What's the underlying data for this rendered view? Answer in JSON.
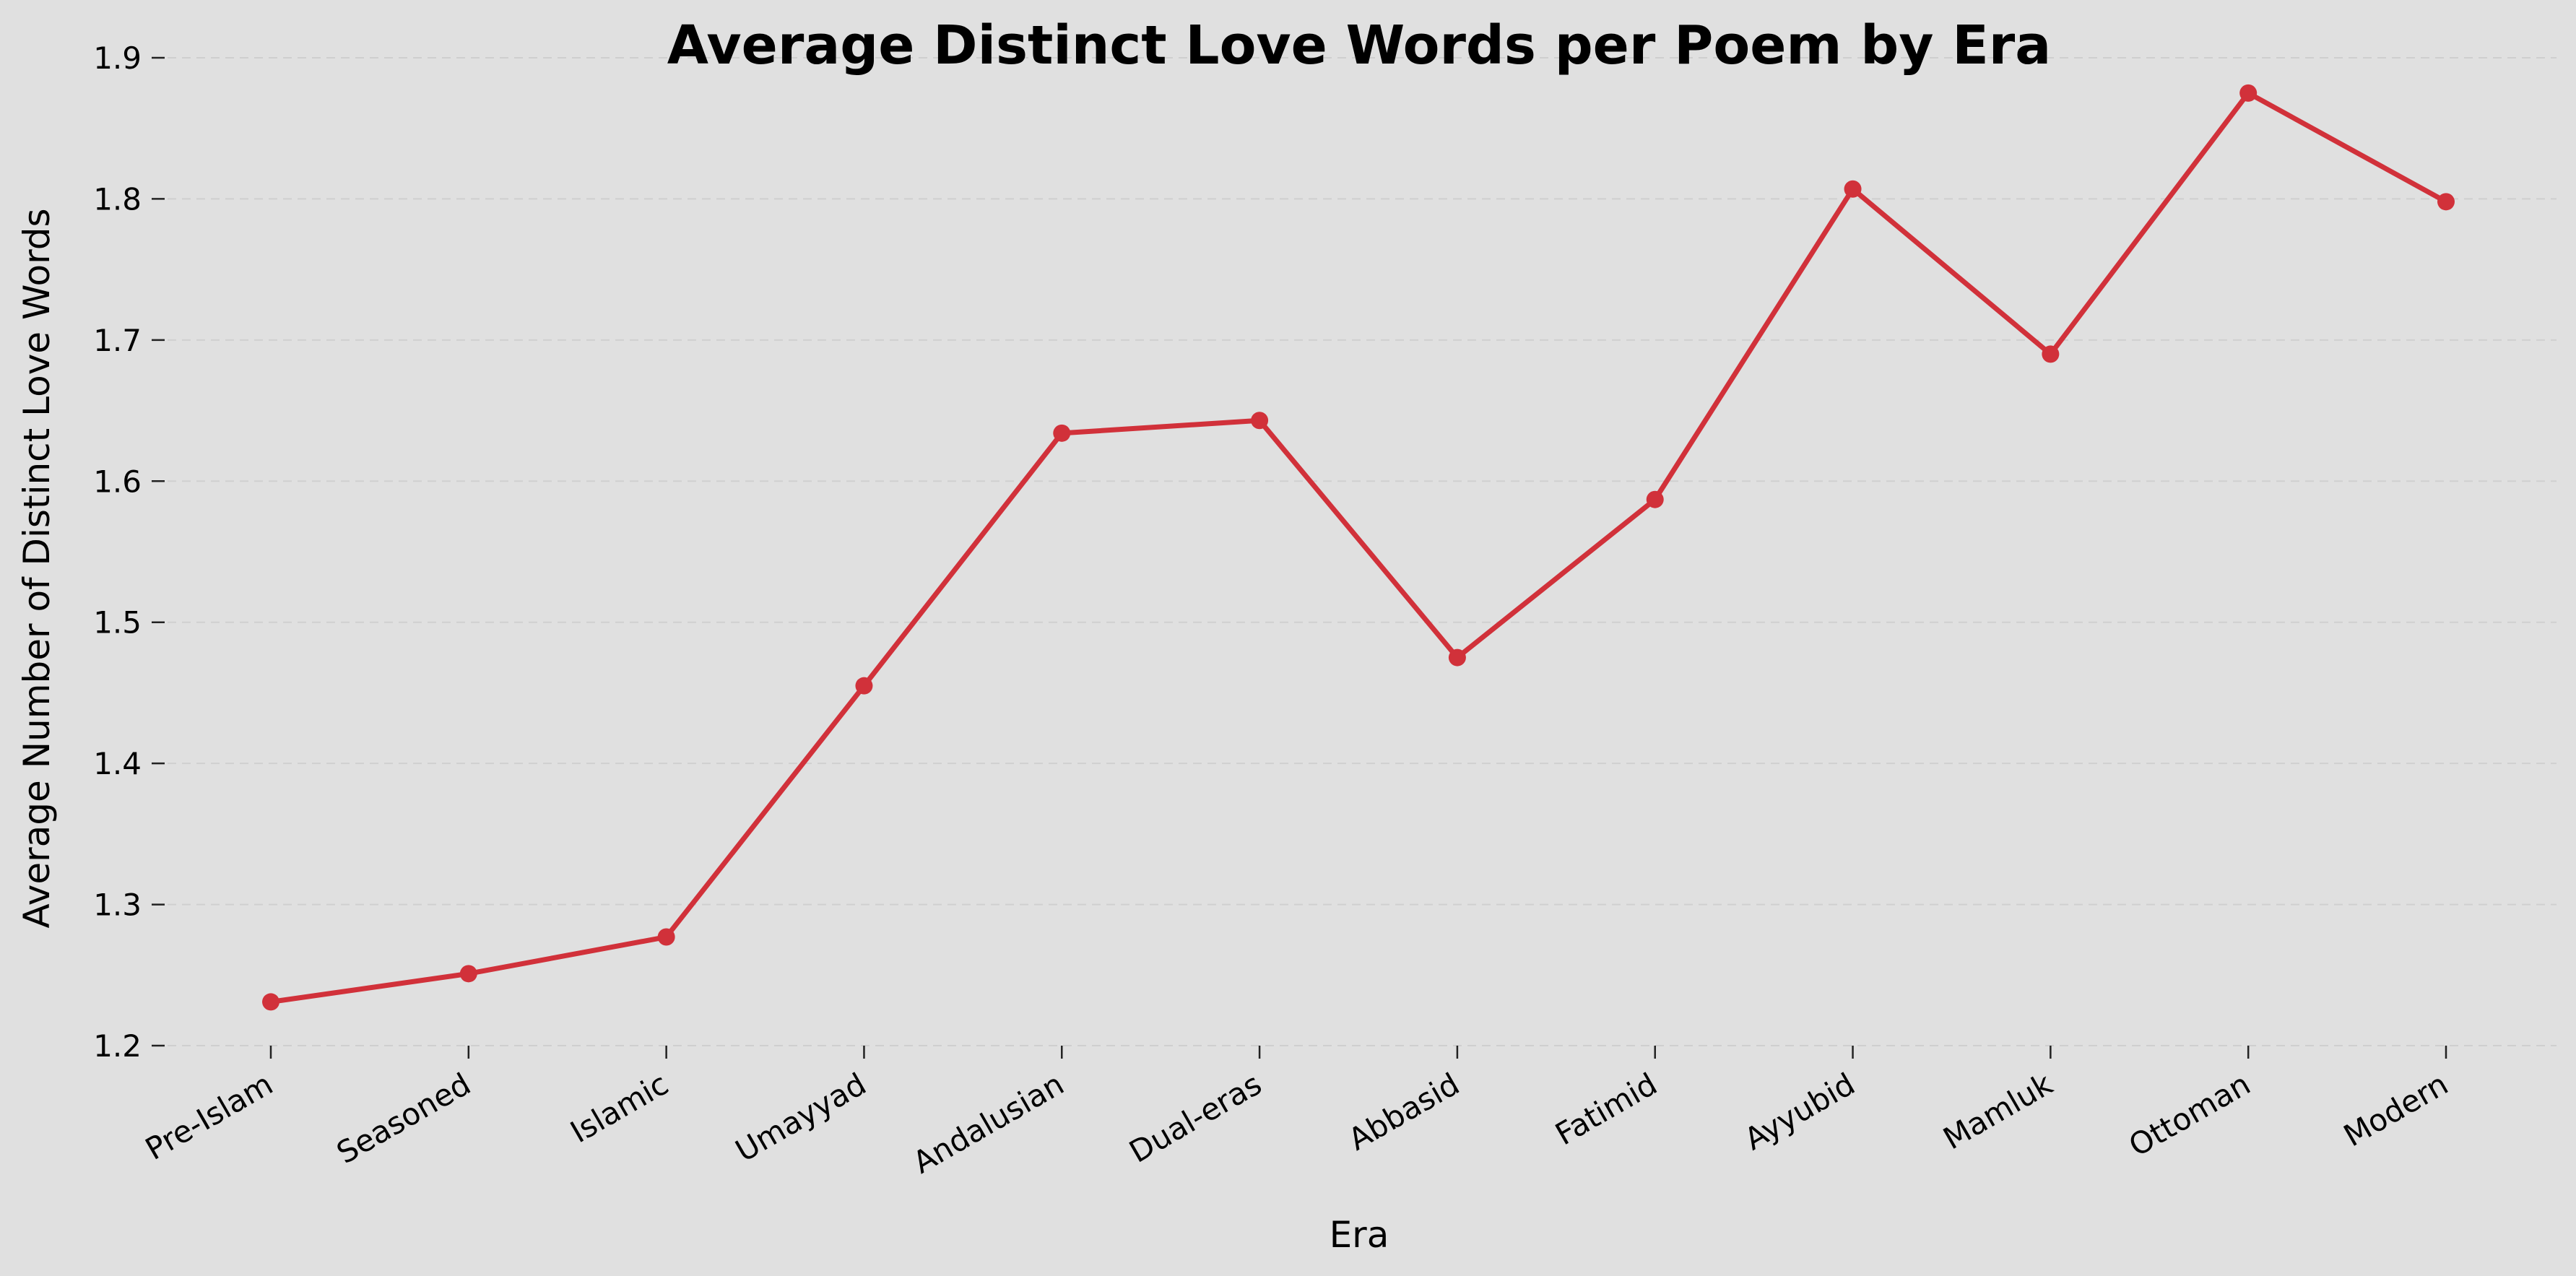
{
  "chart_data": {
    "type": "line",
    "title": "Average Distinct Love Words per Poem by Era",
    "xlabel": "Era",
    "ylabel": "Average Number of Distinct Love Words",
    "categories": [
      "Pre-Islam",
      "Seasoned",
      "Islamic",
      "Umayyad",
      "Andalusian",
      "Dual-eras",
      "Abbasid",
      "Fatimid",
      "Ayyubid",
      "Mamluk",
      "Ottoman",
      "Modern"
    ],
    "series": [
      {
        "values": [
          1.231,
          1.251,
          1.277,
          1.455,
          1.634,
          1.643,
          1.475,
          1.587,
          1.807,
          1.69,
          1.875,
          1.798
        ],
        "color": "#d1313a"
      }
    ],
    "ylim": [
      1.2,
      1.9
    ],
    "yticks": [
      "1.2",
      "1.3",
      "1.4",
      "1.5",
      "1.6",
      "1.7",
      "1.8",
      "1.9"
    ],
    "grid": "horizontal dashed",
    "background": "#e0e0e0"
  }
}
